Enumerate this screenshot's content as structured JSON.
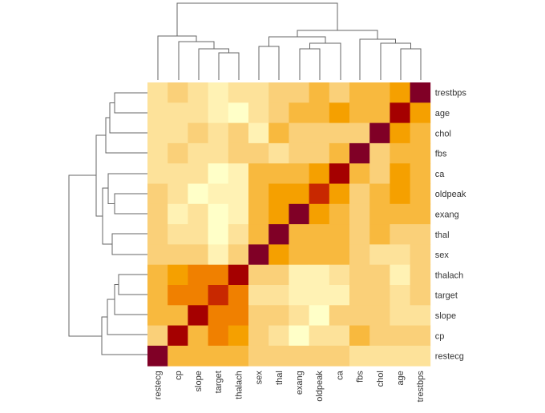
{
  "chart_data": {
    "type": "heatmap",
    "title": "",
    "xlabel": "",
    "ylabel": "",
    "columns": [
      "restecg",
      "cp",
      "slope",
      "target",
      "thalach",
      "sex",
      "thal",
      "exang",
      "oldpeak",
      "ca",
      "fbs",
      "chol",
      "age",
      "trestbps"
    ],
    "rows": [
      "trestbps",
      "age",
      "chol",
      "fbs",
      "ca",
      "oldpeak",
      "exang",
      "thal",
      "sex",
      "thalach",
      "target",
      "slope",
      "cp",
      "restecg"
    ],
    "color_scale": [
      "#FFFFC8",
      "#FFF2B4",
      "#FDE29A",
      "#FAD079",
      "#F8B93E",
      "#F5A000",
      "#F08000",
      "#C82800",
      "#A50000",
      "#800026"
    ],
    "levels": [
      [
        2,
        3,
        2,
        1,
        2,
        2,
        3,
        3,
        4,
        3,
        4,
        4,
        5,
        9
      ],
      [
        2,
        2,
        2,
        1,
        0,
        2,
        3,
        4,
        4,
        5,
        4,
        4,
        8,
        5
      ],
      [
        2,
        2,
        3,
        2,
        3,
        1,
        4,
        3,
        3,
        3,
        3,
        9,
        5,
        4
      ],
      [
        2,
        3,
        2,
        2,
        3,
        3,
        2,
        3,
        3,
        4,
        9,
        3,
        4,
        4
      ],
      [
        2,
        2,
        2,
        0,
        1,
        4,
        4,
        4,
        5,
        8,
        4,
        3,
        5,
        4
      ],
      [
        3,
        2,
        0,
        1,
        1,
        4,
        5,
        5,
        7,
        5,
        3,
        4,
        5,
        4
      ],
      [
        3,
        1,
        2,
        0,
        1,
        4,
        5,
        9,
        5,
        4,
        3,
        4,
        4,
        4
      ],
      [
        3,
        2,
        2,
        0,
        2,
        4,
        9,
        4,
        4,
        4,
        3,
        4,
        3,
        3
      ],
      [
        3,
        3,
        3,
        1,
        3,
        9,
        5,
        4,
        4,
        4,
        3,
        2,
        2,
        3
      ],
      [
        4,
        5,
        6,
        6,
        8,
        3,
        3,
        1,
        1,
        2,
        3,
        3,
        1,
        3
      ],
      [
        4,
        6,
        6,
        7,
        6,
        2,
        2,
        1,
        1,
        1,
        3,
        3,
        2,
        3
      ],
      [
        4,
        4,
        8,
        6,
        6,
        3,
        3,
        2,
        0,
        3,
        3,
        3,
        2,
        2
      ],
      [
        3,
        8,
        4,
        6,
        5,
        3,
        2,
        0,
        2,
        2,
        4,
        3,
        3,
        3
      ],
      [
        9,
        4,
        4,
        4,
        4,
        3,
        3,
        3,
        3,
        3,
        2,
        2,
        2,
        2
      ]
    ],
    "row_dendrogram": true,
    "column_dendrogram": true,
    "legend": "none"
  }
}
